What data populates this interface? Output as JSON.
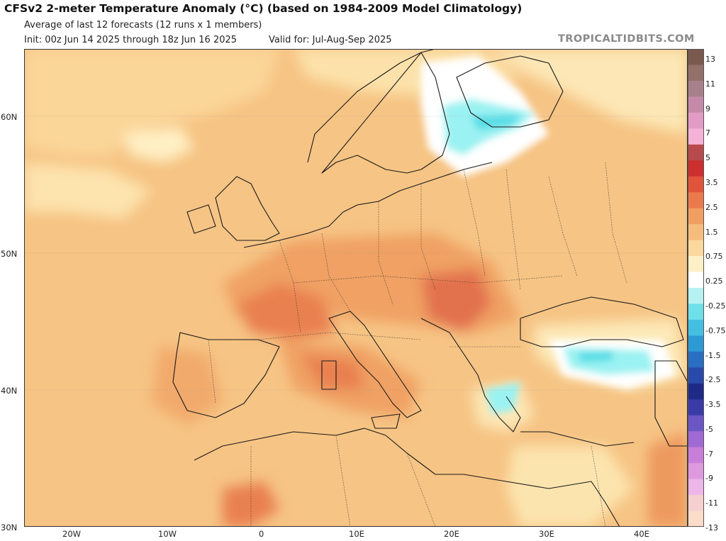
{
  "header": {
    "title": "CFSv2 2-meter Temperature Anomaly (°C) (based on 1984-2009 Model Climatology)",
    "subtitle": "Average of last 12 forecasts (12 runs x 1 members)",
    "init": "Init: 00z Jun 14 2025 through 18z Jun 16 2025",
    "valid": "Valid for: Jul-Aug-Sep 2025",
    "brand": "TROPICALTIDBITS.COM"
  },
  "map": {
    "lat_labels": [
      {
        "label": "60N",
        "value": 60
      },
      {
        "label": "50N",
        "value": 50
      },
      {
        "label": "40N",
        "value": 40
      },
      {
        "label": "30N",
        "value": 30
      }
    ],
    "lon_labels": [
      {
        "label": "20W",
        "value": -20
      },
      {
        "label": "10W",
        "value": -10
      },
      {
        "label": "0",
        "value": 0
      },
      {
        "label": "10E",
        "value": 10
      },
      {
        "label": "20E",
        "value": 20
      },
      {
        "label": "30E",
        "value": 30
      },
      {
        "label": "40E",
        "value": 40
      }
    ],
    "anomaly_colors": {
      "ocean_base": "#f6c484",
      "warm_light": "#fde9b5",
      "warm_mid": "#f5b672",
      "warm_strong": "#ee9a5e",
      "hot": "#e2714e",
      "near_zero": "#ffffff",
      "cool_light": "#9bf2f2",
      "cool_mid": "#58dde6"
    }
  },
  "colorbar": {
    "labels": [
      "13",
      "11",
      "9",
      "7",
      "5",
      "3.5",
      "2.5",
      "1.5",
      "0.75",
      "0.25",
      "-0.25",
      "-0.75",
      "-1.5",
      "-2.5",
      "-3.5",
      "-5",
      "-7",
      "-9",
      "-11",
      "-13"
    ],
    "colors": [
      "#7a5a4e",
      "#94706a",
      "#a8808c",
      "#c58aa9",
      "#e29bc5",
      "#f6b2d6",
      "#b8494c",
      "#cc2f2f",
      "#e2533c",
      "#ea7a4e",
      "#f09e62",
      "#f5bc7e",
      "#fbd89d",
      "#fdf0c6",
      "#ffffff",
      "#b6f2f2",
      "#6fdfe9",
      "#44bfe2",
      "#2d9ad4",
      "#2a6ec1",
      "#2a4aaa",
      "#1e2a85",
      "#3a3aa8",
      "#6c56c4",
      "#a06ad2",
      "#c77fda",
      "#de9ade",
      "#ecb6e8",
      "#f6d0d0",
      "#fbdcc8"
    ]
  }
}
